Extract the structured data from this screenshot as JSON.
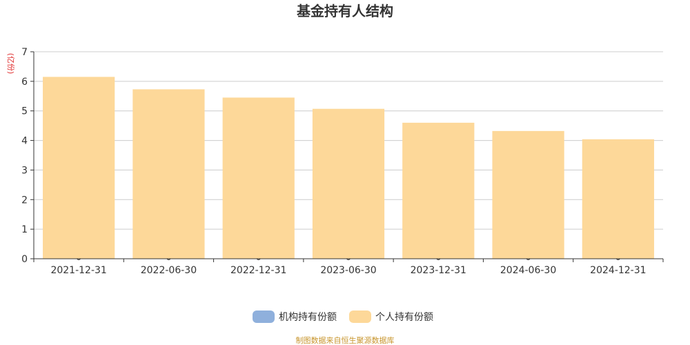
{
  "chart_data": {
    "type": "bar",
    "title": "基金持有人结构",
    "ylabel": "(亿份)",
    "ylim": [
      0,
      7
    ],
    "yticks": [
      0,
      1,
      2,
      3,
      4,
      5,
      6,
      7
    ],
    "grid": true,
    "legend_position": "bottom",
    "categories": [
      "2021-12-31",
      "2022-06-30",
      "2022-12-31",
      "2023-06-30",
      "2023-12-31",
      "2024-06-30",
      "2024-12-31"
    ],
    "series": [
      {
        "name": "机构持有份额",
        "color": "#8fb0dc",
        "values": [
          0,
          0,
          0,
          0,
          0,
          0,
          0
        ]
      },
      {
        "name": "个人持有份额",
        "color": "#fdd899",
        "values": [
          6.15,
          5.73,
          5.45,
          5.07,
          4.6,
          4.32,
          4.04
        ]
      }
    ],
    "source": "制图数据来自恒生聚源数据库"
  }
}
